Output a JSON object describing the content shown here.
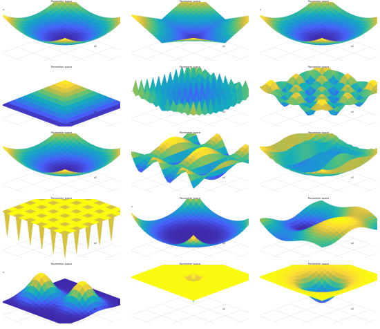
{
  "panel_title": "Parameter space",
  "colors": {
    "low": "#3e26a8",
    "mid": "#1fa9c9",
    "high": "#f9fb0e"
  },
  "chart_data": [
    {
      "type": "surface",
      "shape": "bowl",
      "title": "Parameter space",
      "zlabel": "F1(x1, x2)",
      "xlabel": "x1",
      "ylabel": "x2",
      "grid": true,
      "ztick_labels": [
        "0",
        "1",
        "2"
      ],
      "zscale_label": "×10⁴",
      "xtick_labels": [
        "-100",
        "0",
        "100"
      ]
    },
    {
      "type": "surface",
      "shape": "cross",
      "title": "Parameter space",
      "zlabel": "F2(x1, x2)",
      "xlabel": "x1",
      "ylabel": "x2",
      "grid": true,
      "ztick_labels": [
        "0",
        "5000",
        "10000"
      ],
      "xtick_labels": [
        "-100",
        "0",
        "100"
      ]
    },
    {
      "type": "surface",
      "shape": "bowl",
      "title": "Parameter space",
      "zlabel": "F3(x1, x2)",
      "xlabel": "x1",
      "ylabel": "x2",
      "grid": true,
      "ztick_labels": [
        "0",
        "2",
        "4"
      ],
      "zscale_label": "×10⁴",
      "xtick_labels": [
        "-100",
        "0",
        "100"
      ]
    },
    {
      "type": "surface",
      "shape": "pyramid",
      "title": "Parameter space",
      "zlabel": "F4(x1, x2)",
      "xlabel": "x1",
      "ylabel": "x2",
      "grid": true,
      "ztick_labels": [
        "0",
        "50",
        "100"
      ],
      "xtick_labels": [
        "-100",
        "0",
        "100"
      ]
    },
    {
      "type": "surface",
      "shape": "spiky",
      "title": "Parameter space",
      "zlabel": "F5(x1, x2)",
      "xlabel": "x1",
      "ylabel": "x2",
      "grid": true,
      "ztick_labels": [
        "0",
        "0.5",
        "1"
      ],
      "xtick_labels": [
        "-1",
        "0",
        "1"
      ]
    },
    {
      "type": "surface",
      "shape": "egg",
      "title": "Parameter space",
      "zlabel": "F6(x1, x2)",
      "xlabel": "x1",
      "ylabel": "x2",
      "grid": true,
      "ztick_labels": [
        "0",
        "50",
        "100"
      ],
      "xtick_labels": [
        "-5",
        "0",
        "5"
      ]
    },
    {
      "type": "surface",
      "shape": "bowl",
      "title": "Parameter space",
      "zlabel": "F7(x1, x2)",
      "xlabel": "x1",
      "ylabel": "x2",
      "grid": true,
      "ztick_labels": [
        "0",
        "500",
        "1000"
      ],
      "xtick_labels": [
        "-500",
        "0",
        "500"
      ]
    },
    {
      "type": "surface",
      "shape": "ripple",
      "title": "Parameter space",
      "zlabel": "F8(x1, x2)",
      "xlabel": "x1",
      "ylabel": "x2",
      "grid": true,
      "ztick_labels": [
        "-5",
        "0",
        "5"
      ],
      "xtick_labels": [
        "-5",
        "0",
        "5"
      ]
    },
    {
      "type": "surface",
      "shape": "comb",
      "title": "Parameter space",
      "zlabel": "F9(x1, x2)",
      "xlabel": "x1",
      "ylabel": "x2",
      "grid": true,
      "ztick_labels": [
        "0",
        "5",
        "10"
      ],
      "xtick_labels": [
        "-20",
        "0",
        "20"
      ]
    },
    {
      "type": "surface",
      "shape": "plateau",
      "title": "Parameter space",
      "zlabel": "F10(x1, x2)",
      "xlabel": "x1",
      "ylabel": "x2",
      "grid": true,
      "ztick_labels": [
        "0",
        "100",
        "200",
        "300"
      ],
      "xtick_labels": [
        "-50",
        "0",
        "50"
      ]
    },
    {
      "type": "surface",
      "shape": "bowl_high",
      "title": "Parameter space",
      "zlabel": "F11(x1, x2)",
      "xlabel": "x1",
      "ylabel": "x2",
      "grid": true,
      "ztick_labels": [
        "0",
        "2",
        "4"
      ],
      "zscale_label": "×10⁸",
      "xtick_labels": [
        "-10",
        "0",
        "10"
      ]
    },
    {
      "type": "surface",
      "shape": "wavy",
      "title": "Parameter space",
      "zlabel": "F12(x1, x2)",
      "xlabel": "x1",
      "ylabel": "x2",
      "grid": true,
      "ztick_labels": [
        "0",
        "0.5",
        "1"
      ],
      "xtick_labels": [
        "-5",
        "0",
        "5"
      ]
    },
    {
      "type": "surface",
      "shape": "two_peaks",
      "title": "Parameter space",
      "zlabel": "F13(x1, x2)",
      "xlabel": "x1",
      "ylabel": "x2",
      "grid": true,
      "ztick_labels": [
        "0",
        "1",
        "2"
      ],
      "zscale_label": "×10⁸",
      "xtick_labels": [
        "-10",
        "0",
        "10"
      ]
    },
    {
      "type": "surface",
      "shape": "flat_well",
      "title": "Parameter space",
      "zlabel": "F14(x1, x2)",
      "xlabel": "x1",
      "ylabel": "x2",
      "grid": true,
      "ztick_labels": [
        "0",
        "100",
        "200",
        "300",
        "400",
        "500"
      ],
      "xtick_labels": [
        "-50",
        "0",
        "50"
      ]
    },
    {
      "type": "surface",
      "shape": "funnel",
      "title": "Parameter space",
      "zlabel": "F15(x1, x2)",
      "xlabel": "x1",
      "ylabel": "x2",
      "grid": true,
      "ztick_labels": [
        "0",
        "0.05",
        "0.1"
      ],
      "xtick_labels": [
        "-5",
        "0",
        "5"
      ]
    }
  ]
}
